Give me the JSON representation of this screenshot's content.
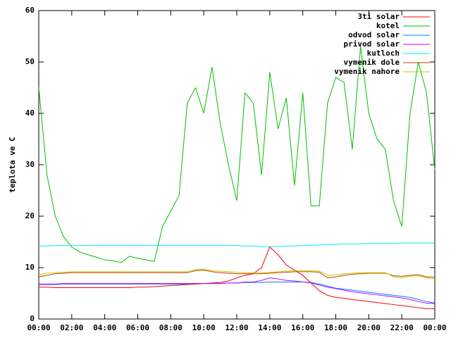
{
  "chart_data": {
    "type": "line",
    "y_label": "teplota ve C",
    "x": [
      0,
      0.5,
      1,
      1.5,
      2,
      2.5,
      3,
      3.5,
      4,
      4.5,
      5,
      5.5,
      6,
      6.5,
      7,
      7.5,
      8,
      8.5,
      9,
      9.5,
      10,
      10.5,
      11,
      11.5,
      12,
      12.5,
      13,
      13.5,
      14,
      14.5,
      15,
      15.5,
      16,
      16.5,
      17,
      17.5,
      18,
      18.5,
      19,
      19.5,
      20,
      20.5,
      21,
      21.5,
      22,
      22.5,
      23,
      23.5,
      24
    ],
    "xlim": [
      0,
      24
    ],
    "xticks": [
      {
        "value": 0,
        "label": "00:00"
      },
      {
        "value": 2,
        "label": "02:00"
      },
      {
        "value": 4,
        "label": "04:00"
      },
      {
        "value": 6,
        "label": "06:00"
      },
      {
        "value": 8,
        "label": "08:00"
      },
      {
        "value": 10,
        "label": "10:00"
      },
      {
        "value": 12,
        "label": "12:00"
      },
      {
        "value": 14,
        "label": "14:00"
      },
      {
        "value": 16,
        "label": "16:00"
      },
      {
        "value": 18,
        "label": "18:00"
      },
      {
        "value": 20,
        "label": "20:00"
      },
      {
        "value": 22,
        "label": "22:00"
      },
      {
        "value": 24,
        "label": "00:00"
      }
    ],
    "ylim": [
      0,
      60
    ],
    "yticks": [
      0,
      10,
      20,
      30,
      40,
      50,
      60
    ],
    "legend": "top-right",
    "series": [
      {
        "name": "3ti solar",
        "color": "#ff0000",
        "values": [
          6.2,
          6.2,
          6.1,
          6.1,
          6.1,
          6.1,
          6.1,
          6.1,
          6.1,
          6.1,
          6.1,
          6.1,
          6.2,
          6.2,
          6.3,
          6.4,
          6.5,
          6.6,
          6.7,
          6.8,
          6.9,
          7,
          7.1,
          7.4,
          8,
          8.5,
          8.8,
          10,
          14,
          12.5,
          10.5,
          9.5,
          8.5,
          7,
          5.5,
          4.6,
          4.2,
          4,
          3.8,
          3.6,
          3.4,
          3.2,
          3,
          2.8,
          2.6,
          2.4,
          2.2,
          2,
          2
        ]
      },
      {
        "name": "kotel",
        "color": "#00c000",
        "values": [
          45,
          28,
          20,
          16,
          14,
          13,
          12.5,
          12,
          11.5,
          11.3,
          11,
          12.2,
          11.8,
          11.5,
          11.2,
          18,
          21,
          24,
          42,
          45,
          40,
          49,
          38,
          30,
          23,
          44,
          42,
          28,
          48,
          37,
          43,
          26,
          44,
          22,
          22,
          42,
          47,
          46,
          33,
          53,
          40,
          35,
          33,
          23,
          18,
          40,
          50,
          44,
          29
        ]
      },
      {
        "name": "odvod solar",
        "color": "#0080ff",
        "values": [
          6.7,
          6.7,
          6.7,
          6.8,
          6.8,
          6.8,
          6.8,
          6.8,
          6.8,
          6.8,
          6.8,
          6.8,
          6.8,
          6.8,
          6.8,
          6.8,
          6.8,
          6.8,
          6.8,
          6.9,
          6.9,
          6.9,
          6.9,
          7,
          7,
          7.1,
          7.1,
          7.1,
          7.2,
          7.2,
          7.2,
          7.2,
          7.2,
          7.1,
          6.8,
          6.4,
          6,
          5.8,
          5.6,
          5.4,
          5.2,
          5,
          4.8,
          4.6,
          4.4,
          4.2,
          3.8,
          3.4,
          3.1
        ]
      },
      {
        "name": "privod solar",
        "color": "#c000ff",
        "values": [
          6.8,
          6.8,
          6.8,
          6.9,
          6.9,
          6.9,
          6.9,
          6.9,
          6.9,
          6.9,
          6.9,
          6.9,
          6.9,
          6.9,
          6.9,
          6.9,
          6.9,
          6.9,
          6.9,
          6.9,
          6.9,
          6.9,
          6.9,
          7,
          7,
          7.2,
          7.2,
          7.5,
          8,
          7.8,
          7.5,
          7.4,
          7.2,
          7,
          6.6,
          6.2,
          5.9,
          5.6,
          5.3,
          5.1,
          4.9,
          4.7,
          4.5,
          4.3,
          4.1,
          3.8,
          3.4,
          3.1,
          3
        ]
      },
      {
        "name": "kutloch",
        "color": "#00eeee",
        "values": [
          14.2,
          14.2,
          14.3,
          14.3,
          14.3,
          14.3,
          14.3,
          14.3,
          14.3,
          14.3,
          14.3,
          14.3,
          14.3,
          14.3,
          14.3,
          14.3,
          14.3,
          14.3,
          14.3,
          14.3,
          14.3,
          14.3,
          14.3,
          14.3,
          14.3,
          14.2,
          14.2,
          14.1,
          14.1,
          14.1,
          14.2,
          14.2,
          14.3,
          14.3,
          14.4,
          14.5,
          14.5,
          14.6,
          14.6,
          14.6,
          14.7,
          14.7,
          14.7,
          14.7,
          14.8,
          14.8,
          14.8,
          14.8,
          14.8
        ]
      },
      {
        "name": "vymenik dole",
        "color": "#c04000",
        "values": [
          8.2,
          8.5,
          8.8,
          8.9,
          9,
          9,
          9,
          9,
          9,
          9,
          9,
          9,
          9,
          9,
          9,
          9,
          9,
          9,
          9,
          9.4,
          9.5,
          9.2,
          9,
          8.9,
          8.8,
          8.8,
          8.8,
          8.8,
          8.9,
          9,
          9.1,
          9.2,
          9.2,
          9.2,
          9.1,
          8,
          8.2,
          8.5,
          8.7,
          8.8,
          8.9,
          8.9,
          8.9,
          8.4,
          8.3,
          8.5,
          8.6,
          8.2,
          8.1
        ]
      },
      {
        "name": "vymenik nahore",
        "color": "#c8c800",
        "values": [
          8.6,
          8.9,
          9,
          9.1,
          9.2,
          9.2,
          9.2,
          9.2,
          9.2,
          9.2,
          9.2,
          9.2,
          9.2,
          9.2,
          9.2,
          9.2,
          9.2,
          9.2,
          9.2,
          9.6,
          9.7,
          9.4,
          9.3,
          9.2,
          9.1,
          9,
          9,
          9,
          9.1,
          9.2,
          9.3,
          9.4,
          9.4,
          9.4,
          9.3,
          8.5,
          8.6,
          8.8,
          8.9,
          9,
          9,
          9,
          9,
          8.2,
          8,
          8.3,
          8.4,
          8,
          7.8
        ]
      }
    ]
  }
}
